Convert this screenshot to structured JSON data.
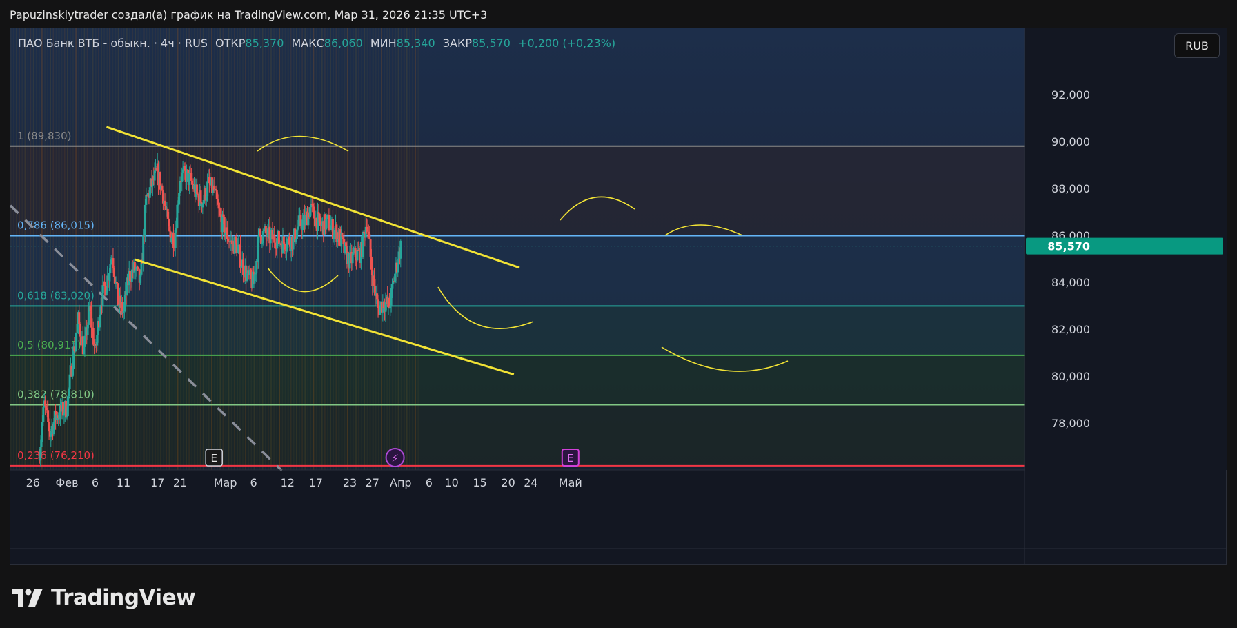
{
  "header": {
    "title": "Papuzinskiytrader создал(а) график на TradingView.com, Мар 31, 2026 21:35 UTC+3"
  },
  "legend": {
    "symbol": "ПАО Банк ВТБ - обыкн. · 4ч · RUS",
    "open_label": "ОТКР",
    "open": "85,370",
    "high_label": "МАКС",
    "high": "86,060",
    "low_label": "МИН",
    "low": "85,340",
    "close_label": "ЗАКР",
    "close": "85,570",
    "change": "+0,200 (+0,23%)"
  },
  "currency_button": "RUB",
  "brand": "TradingView",
  "colors": {
    "background": "#131722",
    "up": "#26a69a",
    "down": "#ef5350",
    "trendline": "#f2e335",
    "fib_100": "#8a8a8a",
    "fib_786": "#64b5f6",
    "fib_618": "#26a69a",
    "fib_50": "#4caf50",
    "fib_382": "#81c784",
    "fib_236": "#f23645"
  },
  "chart_data": {
    "type": "candlestick",
    "symbol": "ПАО Банк ВТБ - обыкн.",
    "timeframe": "4ч",
    "currency": "RUB",
    "ylim": [
      75800,
      95800
    ],
    "y_ticks": [
      {
        "value": 78000,
        "label": "78,000"
      },
      {
        "value": 80000,
        "label": "80,000"
      },
      {
        "value": 82000,
        "label": "82,000"
      },
      {
        "value": 84000,
        "label": "84,000"
      },
      {
        "value": 86000,
        "label": "86,000"
      },
      {
        "value": 88000,
        "label": "88,000"
      },
      {
        "value": 90000,
        "label": "90,000"
      },
      {
        "value": 92000,
        "label": "92,000"
      }
    ],
    "x_ticks": [
      {
        "date": "2026-01-26",
        "label": "26"
      },
      {
        "date": "2026-02-01",
        "label": "Фев"
      },
      {
        "date": "2026-02-06",
        "label": "6"
      },
      {
        "date": "2026-02-11",
        "label": "11"
      },
      {
        "date": "2026-02-17",
        "label": "17"
      },
      {
        "date": "2026-02-21",
        "label": "21"
      },
      {
        "date": "2026-03-01",
        "label": "Мар"
      },
      {
        "date": "2026-03-06",
        "label": "6"
      },
      {
        "date": "2026-03-12",
        "label": "12"
      },
      {
        "date": "2026-03-17",
        "label": "17"
      },
      {
        "date": "2026-03-23",
        "label": "23"
      },
      {
        "date": "2026-03-27",
        "label": "27"
      },
      {
        "date": "2026-04-01",
        "label": "Апр"
      },
      {
        "date": "2026-04-06",
        "label": "6"
      },
      {
        "date": "2026-04-10",
        "label": "10"
      },
      {
        "date": "2026-04-15",
        "label": "15"
      },
      {
        "date": "2026-04-20",
        "label": "20"
      },
      {
        "date": "2026-04-24",
        "label": "24"
      },
      {
        "date": "2026-05-01",
        "label": "Май"
      }
    ],
    "last_price": {
      "value": 85570,
      "label": "85,570"
    },
    "fib_levels": [
      {
        "ratio": "1",
        "value": 89830,
        "label": "1 (89,830)",
        "color": "#8a8a8a"
      },
      {
        "ratio": "0.786",
        "value": 86015,
        "label": "0,786 (86,015)",
        "color": "#64b5f6"
      },
      {
        "ratio": "0.618",
        "value": 83020,
        "label": "0,618 (83,020)",
        "color": "#26a69a"
      },
      {
        "ratio": "0.5",
        "value": 80915,
        "label": "0,5 (80,915)",
        "color": "#4caf50"
      },
      {
        "ratio": "0.382",
        "value": 78810,
        "label": "0,382 (78,810)",
        "color": "#81c784"
      },
      {
        "ratio": "0.236",
        "value": 76210,
        "label": "0,236 (76,210)",
        "color": "#f23645"
      }
    ],
    "trendlines": [
      {
        "name": "upper channel",
        "points": [
          [
            "2026-02-08",
            90650
          ],
          [
            "2026-04-22",
            84650
          ]
        ],
        "color": "#f2e335"
      },
      {
        "name": "lower channel",
        "points": [
          [
            "2026-02-13",
            85000
          ],
          [
            "2026-04-21",
            80100
          ]
        ],
        "color": "#f2e335"
      },
      {
        "name": "dashed trend",
        "points": [
          [
            "2026-01-22",
            87300
          ],
          [
            "2026-03-11",
            76000
          ]
        ],
        "color": "#8a8e99",
        "style": "dashed"
      }
    ],
    "events": [
      {
        "date": "2026-02-27",
        "label": "E",
        "kind": "earnings"
      },
      {
        "date": "2026-03-31",
        "label": "⚡",
        "kind": "dividend"
      },
      {
        "date": "2026-05-01",
        "label": "E",
        "kind": "earnings-upcoming"
      }
    ],
    "price_path": [
      [
        "2026-01-27",
        76500
      ],
      [
        "2026-01-28",
        78800
      ],
      [
        "2026-01-29",
        77600
      ],
      [
        "2026-01-30",
        78300
      ],
      [
        "2026-02-01",
        78700
      ],
      [
        "2026-02-02",
        80800
      ],
      [
        "2026-02-03",
        82400
      ],
      [
        "2026-02-04",
        81100
      ],
      [
        "2026-02-05",
        82900
      ],
      [
        "2026-02-06",
        81000
      ],
      [
        "2026-02-07",
        83300
      ],
      [
        "2026-02-08",
        84000
      ],
      [
        "2026-02-09",
        85300
      ],
      [
        "2026-02-10",
        83200
      ],
      [
        "2026-02-11",
        82800
      ],
      [
        "2026-02-12",
        84300
      ],
      [
        "2026-02-13",
        84600
      ],
      [
        "2026-02-14",
        84000
      ],
      [
        "2026-02-15",
        87500
      ],
      [
        "2026-02-16",
        88200
      ],
      [
        "2026-02-17",
        88700
      ],
      [
        "2026-02-18",
        87800
      ],
      [
        "2026-02-19",
        86200
      ],
      [
        "2026-02-20",
        85900
      ],
      [
        "2026-02-21",
        88500
      ],
      [
        "2026-02-22",
        88600
      ],
      [
        "2026-02-23",
        88300
      ],
      [
        "2026-02-24",
        87700
      ],
      [
        "2026-02-25",
        87500
      ],
      [
        "2026-02-26",
        88200
      ],
      [
        "2026-02-27",
        87900
      ],
      [
        "2026-02-28",
        86800
      ],
      [
        "2026-03-01",
        86200
      ],
      [
        "2026-03-02",
        85700
      ],
      [
        "2026-03-03",
        85600
      ],
      [
        "2026-03-04",
        84800
      ],
      [
        "2026-03-05",
        84200
      ],
      [
        "2026-03-06",
        84000
      ],
      [
        "2026-03-07",
        86000
      ],
      [
        "2026-03-08",
        86100
      ],
      [
        "2026-03-09",
        85900
      ],
      [
        "2026-03-10",
        85900
      ],
      [
        "2026-03-11",
        85700
      ],
      [
        "2026-03-12",
        85800
      ],
      [
        "2026-03-13",
        85800
      ],
      [
        "2026-03-14",
        86500
      ],
      [
        "2026-03-15",
        86600
      ],
      [
        "2026-03-16",
        87200
      ],
      [
        "2026-03-17",
        86700
      ],
      [
        "2026-03-18",
        86400
      ],
      [
        "2026-03-19",
        86600
      ],
      [
        "2026-03-20",
        86300
      ],
      [
        "2026-03-21",
        86100
      ],
      [
        "2026-03-22",
        85400
      ],
      [
        "2026-03-23",
        84900
      ],
      [
        "2026-03-24",
        85200
      ],
      [
        "2026-03-25",
        85300
      ],
      [
        "2026-03-26",
        86700
      ],
      [
        "2026-03-27",
        84300
      ],
      [
        "2026-03-28",
        82900
      ],
      [
        "2026-03-29",
        83200
      ],
      [
        "2026-03-30",
        83000
      ],
      [
        "2026-03-31",
        84400
      ],
      [
        "2026-04-01",
        85570
      ]
    ]
  }
}
